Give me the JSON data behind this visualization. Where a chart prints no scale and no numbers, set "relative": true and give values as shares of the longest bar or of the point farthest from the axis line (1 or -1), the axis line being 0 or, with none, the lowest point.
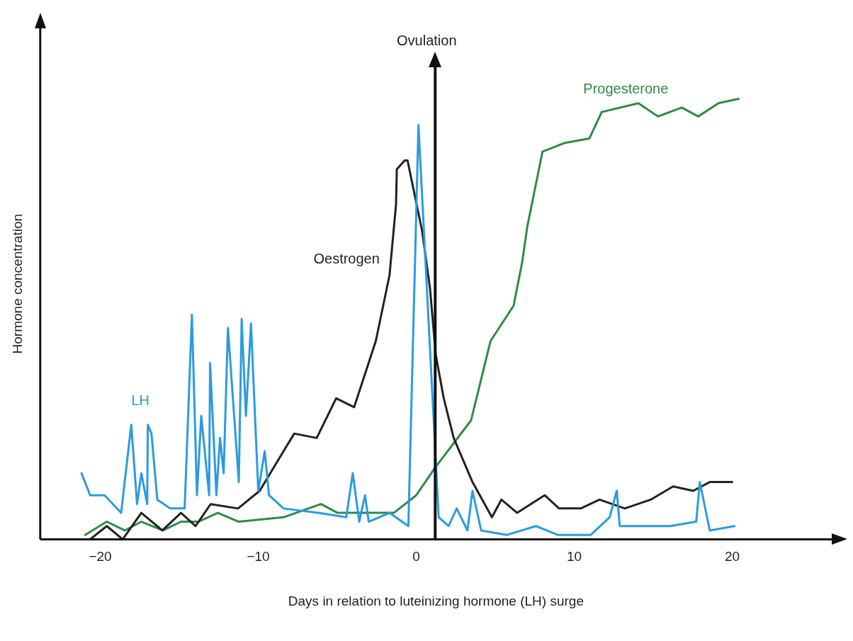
{
  "chart_data": {
    "type": "line",
    "relative": true,
    "xlabel": "Days in relation to luteinizing hormone (LH) surge",
    "ylabel": "Hormone concentration",
    "xlim": [
      -23.8,
      26.3
    ],
    "xticks": [
      -20,
      -10,
      0,
      10,
      20
    ],
    "grid": false,
    "legend": false,
    "marker": "none",
    "line_style": "solid",
    "ref_lines": [
      {
        "axis": "x",
        "value": 1.2,
        "label": "Ovulation",
        "color": "#111111"
      }
    ],
    "series": [
      {
        "name": "LH",
        "color": "#2b9be0",
        "x": [
          -21.19,
          -20.64,
          -19.73,
          -18.68,
          -18.04,
          -17.67,
          -17.4,
          -17.03,
          -16.99,
          -16.76,
          -16.39,
          -15.57,
          -14.66,
          -14.2,
          -13.88,
          -13.61,
          -13.11,
          -13.05,
          -12.65,
          -12.42,
          -12.19,
          -11.92,
          -11.23,
          -11.05,
          -10.78,
          -10.46,
          -10,
          -9.59,
          -9.32,
          -8.4,
          -6.21,
          -4.43,
          -4.02,
          -3.61,
          -3.24,
          -3.01,
          -1.69,
          -0.5,
          0.14,
          1.42,
          2.05,
          2.56,
          3.24,
          3.56,
          4.11,
          5.75,
          7.58,
          8.95,
          11.05,
          12.24,
          12.69,
          12.88,
          14.43,
          16.07,
          17.72,
          17.95,
          18.58,
          20.14
        ],
        "values": [
          0.15,
          0.1,
          0.1,
          0.06,
          0.26,
          0.08,
          0.15,
          0.08,
          0.26,
          0.24,
          0.09,
          0.07,
          0.07,
          0.51,
          0.1,
          0.28,
          0.1,
          0.4,
          0.1,
          0.23,
          0.15,
          0.48,
          0.13,
          0.5,
          0.28,
          0.49,
          0.11,
          0.2,
          0.1,
          0.07,
          0.06,
          0.05,
          0.15,
          0.04,
          0.1,
          0.04,
          0.06,
          0.03,
          0.94,
          0.05,
          0.03,
          0.07,
          0.02,
          0.11,
          0.02,
          0.01,
          0.03,
          0.01,
          0.01,
          0.05,
          0.11,
          0.03,
          0.03,
          0.03,
          0.04,
          0.13,
          0.02,
          0.03
        ]
      },
      {
        "name": "Oestrogen",
        "color": "#222222",
        "x": [
          -20.64,
          -19.59,
          -18.58,
          -17.4,
          -16.07,
          -14.89,
          -13.97,
          -13.01,
          -11.28,
          -9.91,
          -8.4,
          -7.72,
          -6.3,
          -5.07,
          -3.93,
          -2.56,
          -1.69,
          -1.28,
          -1.23,
          -0.73,
          -0.55,
          0.37,
          0.87,
          1.23,
          1.74,
          2.37,
          3.56,
          4.79,
          5.39,
          6.39,
          8.13,
          9.04,
          10.41,
          11.6,
          13.2,
          14.84,
          16.26,
          17.53,
          18.58,
          20
        ],
        "values": [
          0,
          0.03,
          0,
          0.06,
          0.02,
          0.06,
          0.03,
          0.08,
          0.07,
          0.11,
          0.2,
          0.24,
          0.23,
          0.32,
          0.3,
          0.45,
          0.6,
          0.76,
          0.84,
          0.86,
          0.86,
          0.7,
          0.57,
          0.42,
          0.32,
          0.23,
          0.13,
          0.05,
          0.09,
          0.06,
          0.1,
          0.07,
          0.07,
          0.09,
          0.07,
          0.09,
          0.12,
          0.11,
          0.13,
          0.13
        ]
      },
      {
        "name": "Progesterone",
        "color": "#2e8b45",
        "x": [
          -20.96,
          -19.59,
          -18.45,
          -17.4,
          -16.03,
          -14.89,
          -13.79,
          -12.56,
          -11.23,
          -8.4,
          -6.03,
          -4.98,
          -1.42,
          0,
          1.14,
          3.47,
          4.7,
          6.16,
          6.71,
          7.03,
          7.99,
          9.41,
          10.96,
          11.74,
          14.06,
          15.3,
          16.81,
          17.85,
          19.13,
          20.41
        ],
        "values": [
          0.01,
          0.04,
          0.02,
          0.04,
          0.02,
          0.04,
          0.04,
          0.06,
          0.04,
          0.05,
          0.08,
          0.06,
          0.06,
          0.1,
          0.16,
          0.27,
          0.45,
          0.53,
          0.63,
          0.71,
          0.88,
          0.9,
          0.91,
          0.97,
          0.99,
          0.96,
          0.98,
          0.96,
          0.99,
          1
        ]
      }
    ]
  }
}
